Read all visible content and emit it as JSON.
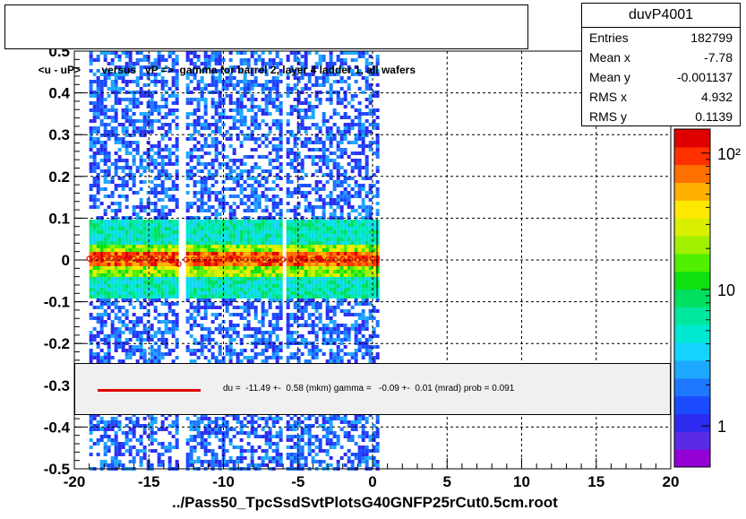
{
  "title": "<u - uP>       versus   vP =>  gamma for barrel 2, layer 4 ladder 1, all wafers",
  "stats": {
    "name": "duvP4001",
    "rows": [
      {
        "label": "Entries",
        "value": "182799"
      },
      {
        "label": "Mean x",
        "value": "-7.78"
      },
      {
        "label": "Mean y",
        "value": "-0.001137"
      },
      {
        "label": "RMS x",
        "value": "4.932"
      },
      {
        "label": "RMS y",
        "value": "0.1139"
      }
    ]
  },
  "legend": {
    "text": "du =  -11.49 +-  0.58 (mkm) gamma =   -0.09 +-  0.01 (mrad) prob = 0.091",
    "line_color": "#e00000"
  },
  "footer": "../Pass50_TpcSsdSvtPlotsG40GNFP25rCut0.5cm.root",
  "chart_data": {
    "type": "heatmap",
    "xlim": [
      -20,
      20
    ],
    "ylim": [
      -0.5,
      0.5
    ],
    "x_ticks": [
      "-20",
      "-15",
      "-10",
      "-5",
      "0",
      "5",
      "10",
      "15",
      "20"
    ],
    "y_ticks": [
      "-0.5",
      "-0.4",
      "-0.3",
      "-0.2",
      "-0.1",
      "0",
      "0.1",
      "0.2",
      "0.3",
      "0.4",
      "0.5"
    ],
    "grid": true,
    "data_x_range": [
      -19,
      0.3
    ],
    "empty_x_bands": [
      [
        -13.0,
        -12.6
      ],
      [
        -6.2,
        -5.8
      ]
    ],
    "core_y": 0.0,
    "colorbar": {
      "scale": "log",
      "labels": [
        {
          "value": 1,
          "text": "1"
        },
        {
          "value": 10,
          "text": "10"
        },
        {
          "value": 100,
          "text": "10²"
        }
      ],
      "colors": [
        "#9400d3",
        "#5a2be6",
        "#2e2bf0",
        "#1a4bff",
        "#1e78ff",
        "#1ea8ff",
        "#15d3ff",
        "#00e8d0",
        "#00e8a0",
        "#00e060",
        "#10e010",
        "#50f000",
        "#a0f000",
        "#d8f000",
        "#ffe800",
        "#ffb000",
        "#ff7000",
        "#ff3000",
        "#e00000"
      ]
    },
    "profile_points": {
      "x": [
        -19.0,
        -18.5,
        -18.0,
        -17.5,
        -17.0,
        -16.5,
        -16.0,
        -15.5,
        -15.0,
        -14.5,
        -14.0,
        -13.5,
        -13.0,
        -12.5,
        -12.0,
        -11.5,
        -11.0,
        -10.5,
        -10.0,
        -9.5,
        -9.0,
        -8.5,
        -8.0,
        -7.5,
        -7.0,
        -6.5,
        -6.0,
        -5.5,
        -5.0,
        -4.5,
        -4.0,
        -3.5,
        -3.0,
        -2.5,
        -2.0,
        -1.5,
        -1.0,
        -0.5,
        0.0,
        0.3
      ],
      "y": [
        0.003,
        0.003,
        0.003,
        0.004,
        0.003,
        0.003,
        0.003,
        0.002,
        0.003,
        0.003,
        0.002,
        -0.002,
        -0.01,
        0.001,
        0.001,
        0.001,
        0.001,
        0.002,
        0.002,
        0.002,
        0.002,
        0.001,
        0.001,
        0.001,
        0.001,
        0.001,
        0.001,
        0.001,
        0.002,
        0.002,
        0.001,
        0.001,
        0.001,
        0.001,
        0.002,
        0.002,
        0.001,
        0.001,
        0.003,
        0.004
      ]
    }
  }
}
